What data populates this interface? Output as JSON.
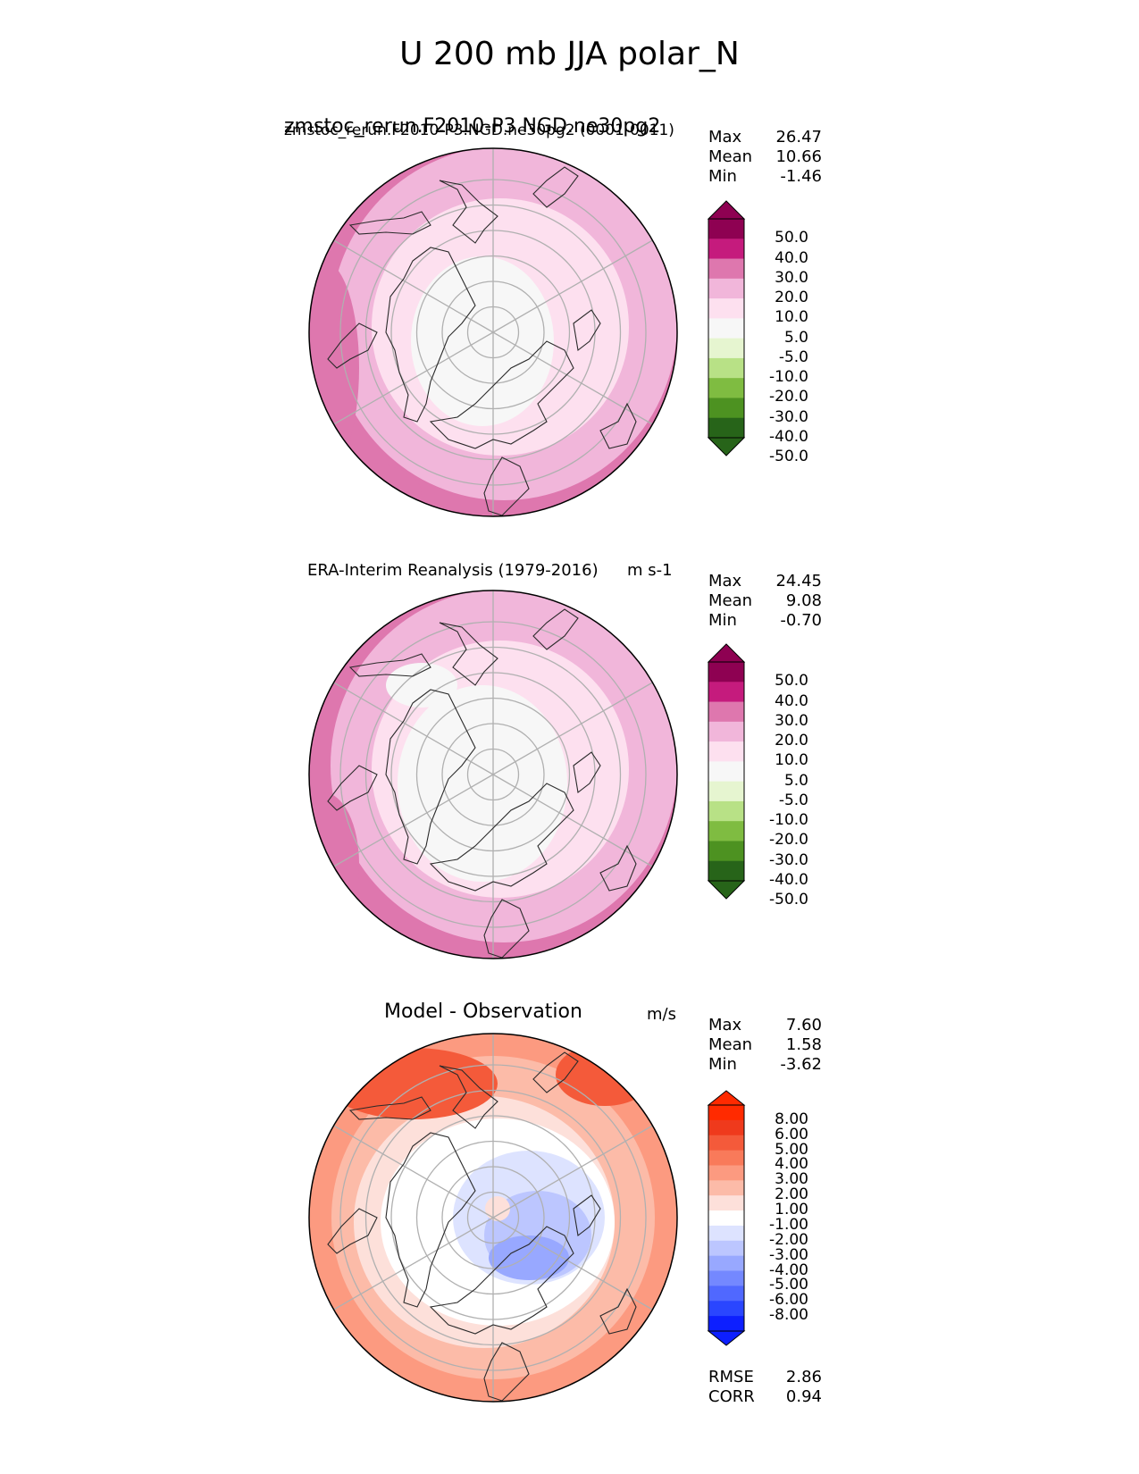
{
  "page_title": "U 200 mb JJA polar_N",
  "colors": {
    "pink_scale": [
      "#276419",
      "#4d9221",
      "#7fbc41",
      "#b8e186",
      "#e6f5d0",
      "#f7f7f7",
      "#fde0ef",
      "#f1b6da",
      "#de77ae",
      "#c51b7d",
      "#8e0152"
    ],
    "diff_scale": [
      "#0d1fff",
      "#2a46ff",
      "#5068ff",
      "#7488ff",
      "#98a8ff",
      "#bcc6ff",
      "#dde3ff",
      "#ffffff",
      "#fde0da",
      "#fcbba8",
      "#fc9a80",
      "#f97a5a",
      "#f45a3a",
      "#ef3a1c",
      "#ff2a00"
    ],
    "grid": "#b0b0b0",
    "coast": "#2a2a2a"
  },
  "panels": [
    {
      "id": "test",
      "title_left_large": "zmstoc_rerun.F2010-P3.NGD.ne30pg2",
      "title_left_small": "zmstoc_rerun.F2010-P3.NGD.ne30pg2 (0001-0011)",
      "title_right": "",
      "stats": {
        "max_label": "Max",
        "max": "26.47",
        "mean_label": "Mean",
        "mean": "10.66",
        "min_label": "Min",
        "min": "-1.46"
      },
      "colorbar_ticks": [
        "50.0",
        "40.0",
        "30.0",
        "20.0",
        "10.0",
        "5.0",
        "-5.0",
        "-10.0",
        "-20.0",
        "-30.0",
        "-40.0",
        "-50.0"
      ]
    },
    {
      "id": "ref",
      "title_left": "ERA-Interim Reanalysis (1979-2016)",
      "title_right": "m s-1",
      "stats": {
        "max_label": "Max",
        "max": "24.45",
        "mean_label": "Mean",
        "mean": "9.08",
        "min_label": "Min",
        "min": "-0.70"
      },
      "colorbar_ticks": [
        "50.0",
        "40.0",
        "30.0",
        "20.0",
        "10.0",
        "5.0",
        "-5.0",
        "-10.0",
        "-20.0",
        "-30.0",
        "-40.0",
        "-50.0"
      ]
    },
    {
      "id": "diff",
      "title_left": "Model - Observation",
      "title_right": "m/s",
      "stats": {
        "max_label": "Max",
        "max": "7.60",
        "mean_label": "Mean",
        "mean": "1.58",
        "min_label": "Min",
        "min": "-3.62"
      },
      "colorbar_ticks": [
        "8.00",
        "6.00",
        "5.00",
        "4.00",
        "3.00",
        "2.00",
        "1.00",
        "-1.00",
        "-2.00",
        "-3.00",
        "-4.00",
        "-5.00",
        "-6.00",
        "-8.00"
      ],
      "metrics": {
        "rmse_label": "RMSE",
        "rmse": "2.86",
        "corr_label": "CORR",
        "corr": "0.94"
      }
    }
  ],
  "chart_data": [
    {
      "type": "heatmap",
      "title": "zmstoc_rerun.F2010-P3.NGD.ne30pg2 (0001-0011)",
      "variable": "U 200 mb JJA",
      "projection": "north polar stereographic",
      "units": "m s-1",
      "levels": [
        -50,
        -40,
        -30,
        -20,
        -10,
        -5,
        5,
        10,
        20,
        30,
        40,
        50
      ],
      "summary": {
        "max": 26.47,
        "mean": 10.66,
        "min": -1.46
      }
    },
    {
      "type": "heatmap",
      "title": "ERA-Interim Reanalysis (1979-2016)",
      "variable": "U 200 mb JJA",
      "projection": "north polar stereographic",
      "units": "m s-1",
      "levels": [
        -50,
        -40,
        -30,
        -20,
        -10,
        -5,
        5,
        10,
        20,
        30,
        40,
        50
      ],
      "summary": {
        "max": 24.45,
        "mean": 9.08,
        "min": -0.7
      }
    },
    {
      "type": "heatmap",
      "title": "Model - Observation",
      "variable": "U 200 mb JJA difference",
      "projection": "north polar stereographic",
      "units": "m/s",
      "levels": [
        -8,
        -6,
        -5,
        -4,
        -3,
        -2,
        -1,
        1,
        2,
        3,
        4,
        5,
        6,
        8
      ],
      "summary": {
        "max": 7.6,
        "mean": 1.58,
        "min": -3.62
      },
      "metrics": {
        "rmse": 2.86,
        "corr": 0.94
      }
    }
  ]
}
